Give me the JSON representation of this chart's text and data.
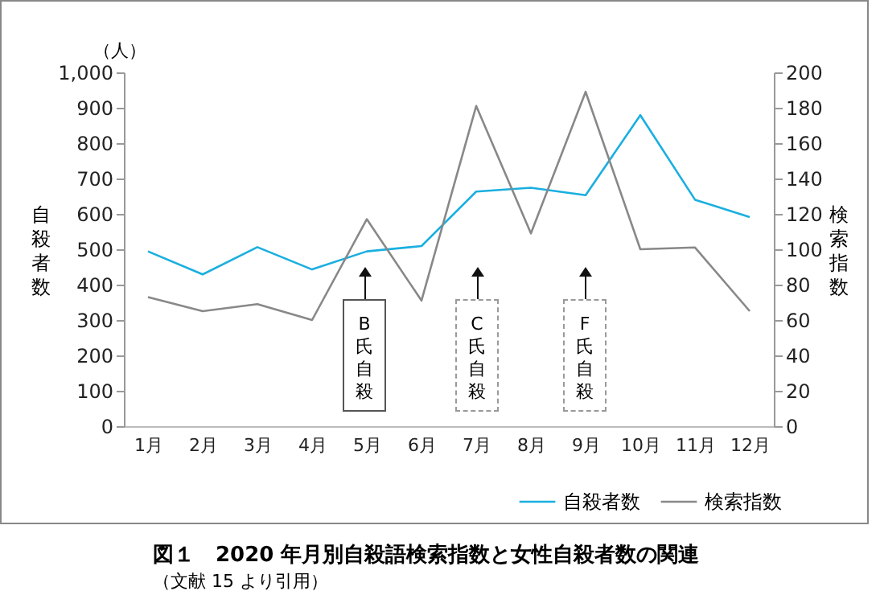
{
  "chart_data": {
    "type": "line",
    "title": "図１　2020 年月別自殺語検索指数と女性自殺者数の関連",
    "ylabel": "自殺者数",
    "y2label": "検索指数",
    "categories": [
      "1月",
      "2月",
      "3月",
      "4月",
      "5月",
      "6月",
      "7月",
      "8月",
      "9月",
      "10月",
      "11月",
      "12月"
    ],
    "series": [
      {
        "name": "自殺者数",
        "color": "#1aafe0",
        "values": [
          494,
          429,
          506,
          443,
          494,
          509,
          663,
          674,
          653,
          879,
          640,
          591
        ]
      },
      {
        "name": "検索指数",
        "color": "#888888",
        "axis": "y2",
        "values": [
          73,
          65,
          69,
          60,
          117,
          71,
          181,
          109,
          189,
          100,
          101,
          65
        ]
      }
    ],
    "ylim": [
      0,
      1000
    ],
    "yticks": [
      0,
      100,
      200,
      300,
      400,
      500,
      600,
      700,
      800,
      900,
      {
        "value": 1000,
        "label": "1,000"
      }
    ],
    "y2lim": [
      0,
      200
    ],
    "y2ticks": [
      0,
      20,
      40,
      60,
      80,
      100,
      120,
      140,
      160,
      180,
      200
    ],
    "legend": "bottom right",
    "grid": false,
    "annotations": [
      "（人）",
      "B氏自殺",
      "C氏自殺",
      "F氏自殺",
      "（文献 15 より引用）"
    ]
  }
}
